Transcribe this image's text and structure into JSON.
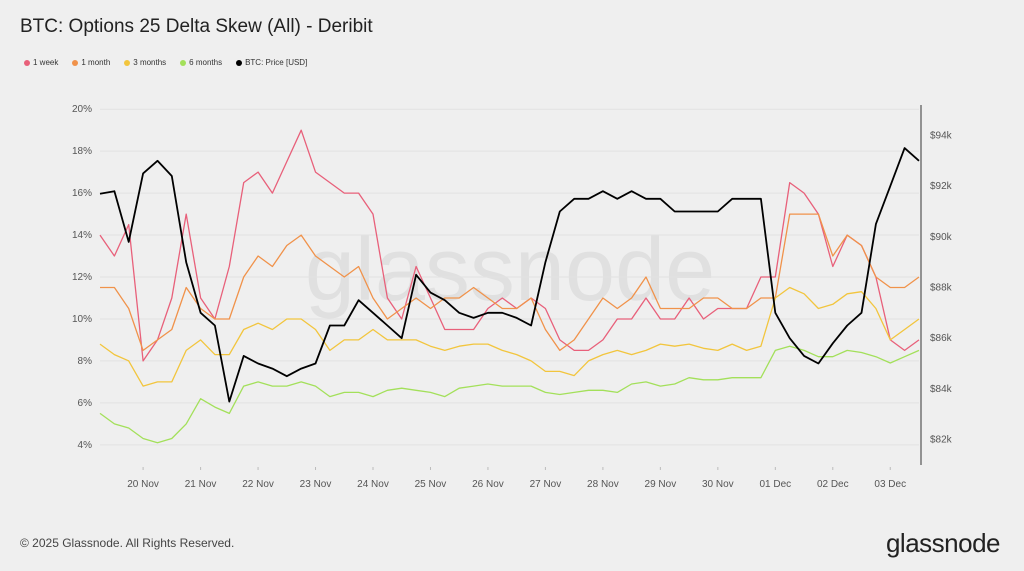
{
  "title": "BTC: Options 25 Delta Skew (All) - Deribit",
  "watermark": "glassnode",
  "footer": "© 2025 Glassnode. All Rights Reserved.",
  "logo": "glassnode",
  "chart_data": {
    "type": "line",
    "title": "BTC: Options 25 Delta Skew (All) - Deribit",
    "legend_position": "top-left",
    "grid": true,
    "x_start": "2025-11-19T06:00",
    "x_step_hours": 6,
    "x_tick_labels": [
      "20 Nov",
      "21 Nov",
      "22 Nov",
      "23 Nov",
      "24 Nov",
      "25 Nov",
      "26 Nov",
      "27 Nov",
      "28 Nov",
      "29 Nov",
      "30 Nov",
      "01 Dec",
      "02 Dec",
      "03 Dec"
    ],
    "y_left": {
      "ticks": [
        4,
        6,
        8,
        10,
        12,
        14,
        16,
        18,
        20
      ],
      "tick_labels": [
        "4%",
        "6%",
        "8%",
        "10%",
        "12%",
        "14%",
        "16%",
        "18%",
        "20%"
      ],
      "ylim": [
        2.8,
        20.2
      ]
    },
    "y_right": {
      "ticks": [
        82,
        84,
        86,
        88,
        90,
        92,
        94
      ],
      "tick_labels": [
        "$82k",
        "$84k",
        "$86k",
        "$88k",
        "$90k",
        "$92k",
        "$94k"
      ],
      "ylim": [
        80.8,
        95.2
      ],
      "unit": "USD thousands"
    },
    "series": [
      {
        "name": "1 week",
        "axis": "left",
        "color": "#e8607a",
        "values": [
          14,
          13,
          14.5,
          8,
          9,
          11,
          15,
          11,
          10,
          12.5,
          16.5,
          17,
          16,
          17.5,
          19,
          17,
          16.5,
          16,
          16,
          15,
          11,
          10,
          12.5,
          11,
          9.5,
          9.5,
          9.5,
          10.5,
          11,
          10.5,
          11,
          10.5,
          9,
          8.5,
          8.5,
          9,
          10,
          10,
          11,
          10,
          10,
          11,
          10,
          10.5,
          10.5,
          10.5,
          12,
          12,
          16.5,
          16,
          15,
          12.5,
          14,
          13.5,
          12,
          9,
          8.5,
          9
        ]
      },
      {
        "name": "1 month",
        "axis": "left",
        "color": "#f0924a",
        "values": [
          11.5,
          11.5,
          10.5,
          8.5,
          9,
          9.5,
          11.5,
          10.5,
          10,
          10,
          12,
          13,
          12.5,
          13.5,
          14,
          13,
          12.5,
          12,
          12.5,
          11,
          10,
          10.5,
          11,
          10.5,
          11,
          11,
          11.5,
          11,
          10.5,
          10.5,
          11,
          9.5,
          8.5,
          9,
          10,
          11,
          10.5,
          11,
          12,
          10.5,
          10.5,
          10.5,
          11,
          11,
          10.5,
          10.5,
          11,
          11,
          15,
          15,
          15,
          13,
          14,
          13.5,
          12,
          11.5,
          11.5,
          12
        ]
      },
      {
        "name": "3 months",
        "axis": "left",
        "color": "#f2c53d",
        "values": [
          8.8,
          8.3,
          8,
          6.8,
          7,
          7,
          8.5,
          9,
          8.3,
          8.3,
          9.5,
          9.8,
          9.5,
          10,
          10,
          9.5,
          8.5,
          9,
          9,
          9.5,
          9,
          9,
          9,
          8.7,
          8.5,
          8.7,
          8.8,
          8.8,
          8.5,
          8.3,
          8,
          7.5,
          7.5,
          7.3,
          8,
          8.3,
          8.5,
          8.3,
          8.5,
          8.8,
          8.7,
          8.8,
          8.6,
          8.5,
          8.8,
          8.5,
          8.7,
          11,
          11.5,
          11.2,
          10.5,
          10.7,
          11.2,
          11.3,
          10.5,
          9,
          9.5,
          10
        ]
      },
      {
        "name": "6 months",
        "axis": "left",
        "color": "#a3e05a",
        "values": [
          5.5,
          5,
          4.8,
          4.3,
          4.1,
          4.3,
          5,
          6.2,
          5.8,
          5.5,
          6.8,
          7,
          6.8,
          6.8,
          7,
          6.8,
          6.3,
          6.5,
          6.5,
          6.3,
          6.6,
          6.7,
          6.6,
          6.5,
          6.3,
          6.7,
          6.8,
          6.9,
          6.8,
          6.8,
          6.8,
          6.5,
          6.4,
          6.5,
          6.6,
          6.6,
          6.5,
          6.9,
          7,
          6.8,
          6.9,
          7.2,
          7.1,
          7.1,
          7.2,
          7.2,
          7.2,
          8.5,
          8.7,
          8.5,
          8.2,
          8.2,
          8.5,
          8.4,
          8.2,
          7.9,
          8.2,
          8.5
        ]
      },
      {
        "name": "BTC: Price [USD]",
        "axis": "right",
        "color": "#000000",
        "values": [
          91.7,
          91.8,
          89.8,
          92.5,
          93,
          92.4,
          89,
          87,
          86.5,
          83.5,
          85.3,
          85,
          84.8,
          84.5,
          84.8,
          85,
          86.5,
          86.5,
          87.5,
          87,
          86.5,
          86,
          88.5,
          87.8,
          87.5,
          87,
          86.8,
          87,
          87,
          86.8,
          86.5,
          89,
          91,
          91.5,
          91.5,
          91.8,
          91.5,
          91.8,
          91.5,
          91.5,
          91,
          91,
          91,
          91,
          91.5,
          91.5,
          91.5,
          87,
          86,
          85.3,
          85,
          85.8,
          86.5,
          87,
          90.5,
          92,
          93.5,
          93
        ]
      }
    ]
  }
}
